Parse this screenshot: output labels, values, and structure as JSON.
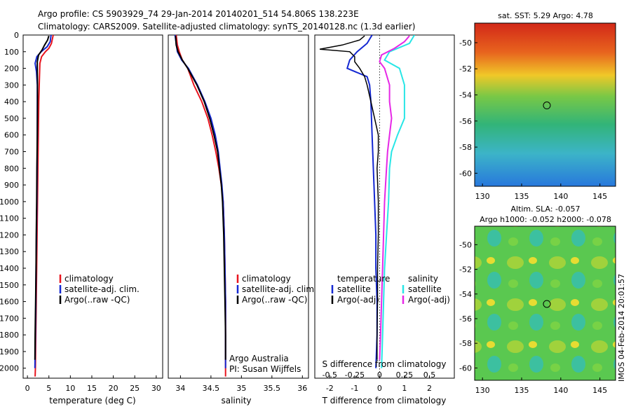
{
  "header": {
    "line1": "Argo profile: CS 5903929_74 29-Jan-2014 20140201_514 54.806S 138.223E",
    "line2": "Climatology: CARS2009. Satellite-adjusted climatology: synTS_20140128.nc (1.3d earlier)"
  },
  "colors": {
    "climatology": "#e8141e",
    "satellite": "#1428d2",
    "argo": "#000000",
    "sal_sat": "#28e6e6",
    "sal_argo": "#e628e6"
  },
  "depth_axis": {
    "ticks": [
      "0",
      "100",
      "200",
      "300",
      "400",
      "500",
      "600",
      "700",
      "800",
      "900",
      "1000",
      "1100",
      "1200",
      "1300",
      "1400",
      "1500",
      "1600",
      "1700",
      "1800",
      "1900",
      "2000"
    ]
  },
  "chart_data": [
    {
      "type": "line",
      "title": "",
      "xlabel": "temperature (deg C)",
      "ylabel": "depth",
      "xlim": [
        -1,
        31.5
      ],
      "ylim": [
        2060,
        0
      ],
      "xticks": [
        "0",
        "5",
        "10",
        "15",
        "20",
        "25",
        "30"
      ],
      "legend": {
        "placement": "lower-middle",
        "items": [
          "climatology",
          "satellite-adj. clim.",
          "Argo(..raw -QC)"
        ]
      },
      "series": [
        {
          "name": "climatology",
          "points": [
            [
              6.0,
              0
            ],
            [
              5.6,
              50
            ],
            [
              5.0,
              80
            ],
            [
              4.2,
              100
            ],
            [
              3.3,
              130
            ],
            [
              2.9,
              170
            ],
            [
              2.8,
              250
            ],
            [
              2.65,
              400
            ],
            [
              2.55,
              600
            ],
            [
              2.45,
              800
            ],
            [
              2.35,
              1000
            ],
            [
              2.25,
              1200
            ],
            [
              2.15,
              1400
            ],
            [
              2.05,
              1600
            ],
            [
              1.95,
              1800
            ],
            [
              1.85,
              2000
            ],
            [
              1.8,
              2050
            ]
          ]
        },
        {
          "name": "satellite-adj. clim.",
          "points": [
            [
              5.5,
              0
            ],
            [
              5.3,
              40
            ],
            [
              4.6,
              70
            ],
            [
              3.2,
              100
            ],
            [
              2.2,
              130
            ],
            [
              1.8,
              170
            ],
            [
              2.1,
              220
            ],
            [
              2.3,
              300
            ],
            [
              2.3,
              400
            ],
            [
              2.3,
              600
            ],
            [
              2.25,
              800
            ],
            [
              2.2,
              1000
            ],
            [
              2.1,
              1200
            ],
            [
              2.0,
              1400
            ],
            [
              1.95,
              1600
            ],
            [
              1.85,
              1800
            ],
            [
              1.75,
              2000
            ]
          ]
        },
        {
          "name": "Argo(..raw -QC)",
          "points": [
            [
              5.0,
              5
            ],
            [
              4.7,
              30
            ],
            [
              4.0,
              60
            ],
            [
              3.4,
              90
            ],
            [
              2.6,
              120
            ],
            [
              2.3,
              160
            ],
            [
              2.3,
              220
            ],
            [
              2.35,
              300
            ],
            [
              2.35,
              400
            ],
            [
              2.3,
              600
            ],
            [
              2.2,
              800
            ],
            [
              2.15,
              1000
            ],
            [
              2.05,
              1200
            ],
            [
              2.0,
              1400
            ],
            [
              1.9,
              1600
            ],
            [
              1.8,
              1800
            ],
            [
              1.75,
              1950
            ]
          ]
        }
      ]
    },
    {
      "type": "line",
      "title": "",
      "xlabel": "salinity",
      "ylabel": "depth",
      "xlim": [
        33.8,
        36.1
      ],
      "ylim": [
        2060,
        0
      ],
      "xticks": [
        "34",
        "34.5",
        "35",
        "35.5",
        "36"
      ],
      "legend": {
        "placement": "lower-middle",
        "items": [
          "climatology",
          "satellite-adj. clim.",
          "Argo(..raw -QC)"
        ]
      },
      "annotations": [
        "Argo Australia",
        "PI: Susan Wijffels"
      ],
      "series": [
        {
          "name": "climatology",
          "points": [
            [
              33.93,
              0
            ],
            [
              33.95,
              60
            ],
            [
              33.98,
              100
            ],
            [
              34.03,
              150
            ],
            [
              34.12,
              200
            ],
            [
              34.22,
              300
            ],
            [
              34.35,
              400
            ],
            [
              34.45,
              500
            ],
            [
              34.52,
              600
            ],
            [
              34.58,
              700
            ],
            [
              34.63,
              800
            ],
            [
              34.67,
              900
            ],
            [
              34.7,
              1000
            ],
            [
              34.72,
              1200
            ],
            [
              34.73,
              1400
            ],
            [
              34.74,
              1600
            ],
            [
              34.74,
              1800
            ],
            [
              34.74,
              2050
            ]
          ]
        },
        {
          "name": "satellite-adj. clim.",
          "points": [
            [
              33.91,
              0
            ],
            [
              33.93,
              50
            ],
            [
              33.95,
              100
            ],
            [
              34.02,
              150
            ],
            [
              34.13,
              200
            ],
            [
              34.28,
              300
            ],
            [
              34.4,
              400
            ],
            [
              34.5,
              500
            ],
            [
              34.57,
              600
            ],
            [
              34.62,
              700
            ],
            [
              34.65,
              800
            ],
            [
              34.68,
              900
            ],
            [
              34.7,
              1000
            ],
            [
              34.72,
              1200
            ],
            [
              34.73,
              1400
            ],
            [
              34.74,
              1600
            ],
            [
              34.74,
              1800
            ],
            [
              34.74,
              2000
            ]
          ]
        },
        {
          "name": "Argo(..raw -QC)",
          "points": [
            [
              33.92,
              5
            ],
            [
              33.93,
              60
            ],
            [
              33.96,
              100
            ],
            [
              34.03,
              150
            ],
            [
              34.12,
              200
            ],
            [
              34.27,
              300
            ],
            [
              34.39,
              400
            ],
            [
              34.48,
              500
            ],
            [
              34.55,
              600
            ],
            [
              34.61,
              700
            ],
            [
              34.64,
              800
            ],
            [
              34.67,
              900
            ],
            [
              34.69,
              1000
            ],
            [
              34.71,
              1200
            ],
            [
              34.72,
              1400
            ],
            [
              34.73,
              1600
            ],
            [
              34.74,
              1800
            ],
            [
              34.74,
              1950
            ]
          ]
        }
      ]
    },
    {
      "type": "line",
      "title": "",
      "xlabel": "T difference from climatology",
      "xlabel2": "S difference from climatology",
      "ylabel": "depth",
      "xlim": [
        -2.6,
        3.0
      ],
      "ylim": [
        2060,
        0
      ],
      "xticks": [
        "-2",
        "-1",
        "0",
        "1",
        "2"
      ],
      "xticks2": [
        "-0.5",
        "-0.25",
        "0",
        "0.25",
        "0.5"
      ],
      "legend": {
        "placement": "lower-middle",
        "groups": [
          {
            "heading": "temperature",
            "items": [
              "satellite",
              "Argo(-adj)"
            ]
          },
          {
            "heading": "salinity",
            "items": [
              "satellite",
              "Argo(-adj)"
            ]
          }
        ]
      },
      "series": [
        {
          "name": "temperature satellite",
          "points": [
            [
              -0.3,
              0
            ],
            [
              -0.5,
              50
            ],
            [
              -0.9,
              100
            ],
            [
              -1.2,
              150
            ],
            [
              -1.3,
              200
            ],
            [
              -0.5,
              250
            ],
            [
              -0.4,
              300
            ],
            [
              -0.35,
              400
            ],
            [
              -0.3,
              600
            ],
            [
              -0.25,
              800
            ],
            [
              -0.2,
              1000
            ],
            [
              -0.15,
              1200
            ],
            [
              -0.15,
              1400
            ],
            [
              -0.1,
              1600
            ],
            [
              -0.1,
              1800
            ],
            [
              -0.15,
              2000
            ]
          ]
        },
        {
          "name": "temperature Argo(-adj)",
          "points": [
            [
              -0.6,
              5
            ],
            [
              -0.8,
              30
            ],
            [
              -1.5,
              60
            ],
            [
              -2.4,
              85
            ],
            [
              -1.2,
              100
            ],
            [
              -1.0,
              130
            ],
            [
              -1.0,
              160
            ],
            [
              -0.8,
              200
            ],
            [
              -0.6,
              250
            ],
            [
              -0.5,
              300
            ],
            [
              -0.35,
              400
            ],
            [
              -0.2,
              500
            ],
            [
              -0.05,
              600
            ],
            [
              -0.05,
              700
            ],
            [
              -0.1,
              800
            ],
            [
              -0.05,
              1000
            ],
            [
              -0.05,
              1200
            ],
            [
              -0.08,
              1400
            ],
            [
              -0.08,
              1600
            ],
            [
              -0.1,
              1800
            ],
            [
              -0.1,
              1950
            ]
          ]
        },
        {
          "name": "salinity satellite",
          "points": [
            [
              0.35,
              0
            ],
            [
              0.3,
              50
            ],
            [
              0.1,
              100
            ],
            [
              0.05,
              150
            ],
            [
              0.2,
              200
            ],
            [
              0.25,
              300
            ],
            [
              0.25,
              400
            ],
            [
              0.25,
              500
            ],
            [
              0.18,
              600
            ],
            [
              0.12,
              700
            ],
            [
              0.1,
              800
            ],
            [
              0.09,
              1000
            ],
            [
              0.07,
              1200
            ],
            [
              0.05,
              1400
            ],
            [
              0.04,
              1600
            ],
            [
              0.03,
              1800
            ],
            [
              0.02,
              2000
            ]
          ]
        },
        {
          "name": "salinity Argo(-adj)",
          "points": [
            [
              0.3,
              5
            ],
            [
              0.25,
              40
            ],
            [
              0.15,
              80
            ],
            [
              0.02,
              120
            ],
            [
              0.0,
              160
            ],
            [
              0.05,
              200
            ],
            [
              0.1,
              300
            ],
            [
              0.1,
              400
            ],
            [
              0.12,
              500
            ],
            [
              0.1,
              600
            ],
            [
              0.08,
              700
            ],
            [
              0.07,
              800
            ],
            [
              0.05,
              1000
            ],
            [
              0.04,
              1200
            ],
            [
              0.03,
              1400
            ],
            [
              0.02,
              1600
            ],
            [
              0.01,
              1800
            ],
            [
              0.0,
              1950
            ]
          ]
        }
      ]
    },
    {
      "type": "heatmap",
      "title": "sat. SST: 5.29 Argo: 4.78",
      "xlim": [
        129,
        147
      ],
      "ylim": [
        -61,
        -48.5
      ],
      "xticks": [
        "130",
        "135",
        "140",
        "145"
      ],
      "yticks": [
        "-50",
        "-52",
        "-54",
        "-56",
        "-58",
        "-60"
      ],
      "marker": {
        "lon": 138.223,
        "lat": -54.806
      }
    },
    {
      "type": "heatmap",
      "title": "Altim. SLA: -0.057",
      "subtitle": "Argo h1000: -0.052 h2000: -0.078",
      "xlim": [
        129,
        147
      ],
      "ylim": [
        -61,
        -48.5
      ],
      "xticks": [
        "130",
        "135",
        "140",
        "145"
      ],
      "yticks": [
        "-50",
        "-52",
        "-54",
        "-56",
        "-58",
        "-60"
      ],
      "marker": {
        "lon": 138.223,
        "lat": -54.806
      }
    }
  ],
  "side_label": "IMOS 04-Feb-2014 20:01:57"
}
